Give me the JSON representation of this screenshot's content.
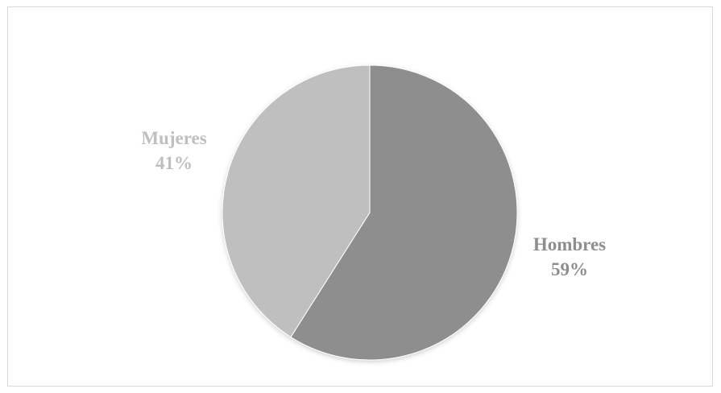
{
  "chart_data": {
    "type": "pie",
    "title": "",
    "slices": [
      {
        "label": "Hombres",
        "value": 59,
        "percent_label": "59%",
        "color": "#8e8e8e",
        "label_color": "#8e8e8e"
      },
      {
        "label": "Mujeres",
        "value": 41,
        "percent_label": "41%",
        "color": "#bfbfbf",
        "label_color": "#bfbfbf"
      }
    ],
    "start": "12 o'clock",
    "direction": "clockwise",
    "legend": "none",
    "data_labels": "outside, category name and percentage",
    "border_color": "#ffffff"
  }
}
